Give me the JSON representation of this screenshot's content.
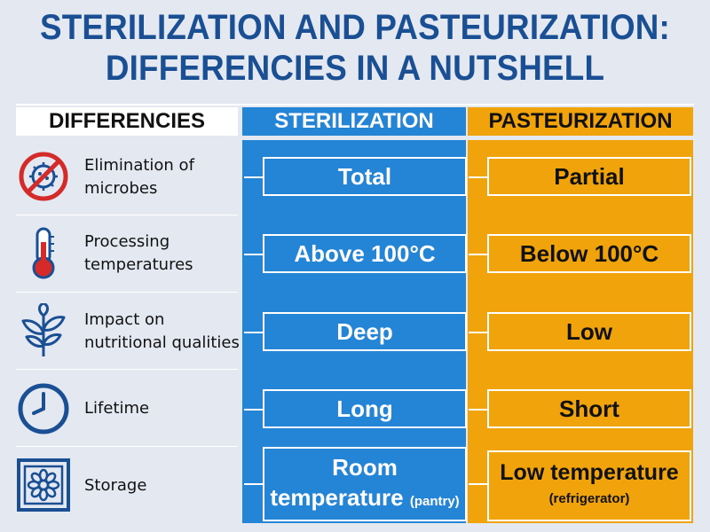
{
  "title": {
    "line1": "STERILIZATION AND PASTEURIZATION:",
    "line2": "DIFFERENCIES IN A NUTSHELL"
  },
  "headers": {
    "differencies": "DIFFERENCIES",
    "sterilization": "STERILIZATION",
    "pasteurization": "PASTEURIZATION"
  },
  "rows": [
    {
      "label": "Elimination of microbes",
      "icon": "no-microbes-icon",
      "sterilization": "Total",
      "pasteurization": "Partial"
    },
    {
      "label": "Processing temperatures",
      "icon": "thermometer-icon",
      "sterilization": "Above 100°C",
      "pasteurization": "Below 100°C"
    },
    {
      "label": "Impact on nutritional qualities",
      "icon": "plant-icon",
      "sterilization": "Deep",
      "pasteurization": "Low"
    },
    {
      "label": "Lifetime",
      "icon": "clock-icon",
      "sterilization": "Long",
      "pasteurization": "Short"
    },
    {
      "label": "Storage",
      "icon": "pantry-icon",
      "sterilization": "Room",
      "sterilization_line2": "temperature",
      "sterilization_note": "(pantry)",
      "pasteurization": "Low temperature",
      "pasteurization_note": "(refrigerator)"
    }
  ],
  "colors": {
    "title": "#1a4f94",
    "sterilization": "#2484d6",
    "pasteurization": "#f0a30a",
    "background": "#e4e9f1",
    "icon_red": "#d42a2a",
    "icon_blue": "#1a4f94"
  }
}
